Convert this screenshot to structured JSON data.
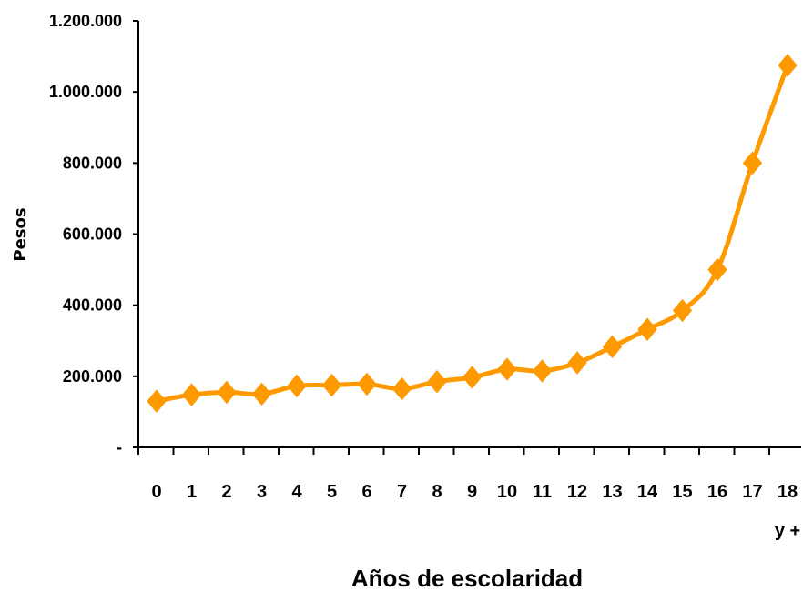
{
  "chart_data": {
    "type": "line",
    "xlabel": "Años de escolaridad",
    "ylabel": "Pesos",
    "categories": [
      "0",
      "1",
      "2",
      "3",
      "4",
      "5",
      "6",
      "7",
      "8",
      "9",
      "10",
      "11",
      "12",
      "13",
      "14",
      "15",
      "16",
      "17",
      "18"
    ],
    "last_category_suffix": "y +",
    "y_ticks": [
      {
        "value": 0,
        "label": "-"
      },
      {
        "value": 200000,
        "label": "200.000"
      },
      {
        "value": 400000,
        "label": "400.000"
      },
      {
        "value": 600000,
        "label": "600.000"
      },
      {
        "value": 800000,
        "label": "800.000"
      },
      {
        "value": 1000000,
        "label": "1.000.000"
      },
      {
        "value": 1200000,
        "label": "1.200.000"
      }
    ],
    "ylim": [
      0,
      1200000
    ],
    "grid": false,
    "legend": "none",
    "series": [
      {
        "values": [
          130000,
          148000,
          155000,
          150000,
          173000,
          175000,
          178000,
          165000,
          185000,
          197000,
          220000,
          215000,
          238000,
          283000,
          332000,
          385000,
          500000,
          800000,
          1075000
        ],
        "color": "#ff9900",
        "marker": "diamond"
      }
    ]
  }
}
